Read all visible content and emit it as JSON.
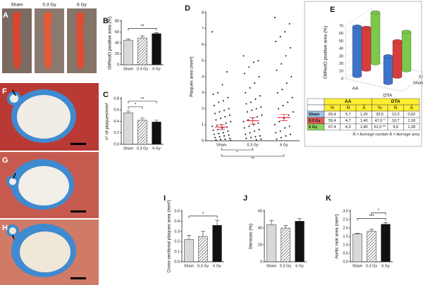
{
  "images": [
    {
      "panel": "A",
      "labels": [
        "Sham",
        "0.3 Gy",
        "6 Gy"
      ]
    },
    {
      "panel": "F"
    },
    {
      "panel": "G"
    },
    {
      "panel": "H"
    }
  ],
  "chart_data": [
    {
      "type": "bar",
      "panel": "B",
      "ylabel": "OilRedO positive area (%)",
      "categories": [
        "Sham",
        "0.3 Gy",
        "6 Gy"
      ],
      "values": [
        45,
        49,
        57
      ],
      "errors": [
        2,
        4,
        2
      ],
      "fills": [
        "#d9d9d9",
        "hatched",
        "#111111"
      ],
      "ylim": [
        0,
        80
      ],
      "yticks": [
        0,
        20,
        40,
        60,
        80
      ],
      "significance": [
        {
          "from": 0,
          "to": 2,
          "label": "**"
        }
      ]
    },
    {
      "type": "bar",
      "panel": "C",
      "ylabel": "n° of plaques/mm²",
      "categories": [
        "Sham",
        "0.3 Gy",
        "6 Gy"
      ],
      "values": [
        0.55,
        0.42,
        0.39
      ],
      "errors": [
        0.03,
        0.04,
        0.03
      ],
      "fills": [
        "#d9d9d9",
        "hatched",
        "#111111"
      ],
      "ylim": [
        0,
        0.8
      ],
      "yticks": [
        {
          "value": 0,
          "label": "0.0"
        },
        0.2,
        0.4,
        0.6,
        0.8
      ],
      "significance": [
        {
          "from": 0,
          "to": 1,
          "label": "*"
        },
        {
          "from": 0,
          "to": 2,
          "label": "**"
        }
      ]
    },
    {
      "type": "dot",
      "panel": "D",
      "ylabel": "Plaques area (mm²)",
      "categories": [
        "Sham",
        "0.3 Gy",
        "6 Gy"
      ],
      "points": [
        [
          6.8,
          4.3,
          3.5,
          3.0,
          2.9,
          2.7,
          2.5,
          2.4,
          2.2,
          2.0,
          1.9,
          1.8,
          1.7,
          1.6,
          1.5,
          1.4,
          1.3,
          1.2,
          1.1,
          1.0,
          0.95,
          0.9,
          0.85,
          0.8,
          0.7,
          0.65,
          0.6,
          0.5,
          0.45,
          0.4,
          0.35,
          0.3,
          0.25,
          0.2,
          0.15,
          0.1,
          0.08,
          0.05,
          0.03
        ],
        [
          5.3,
          5.0,
          4.9,
          4.6,
          4.2,
          4.0,
          3.6,
          3.3,
          3.0,
          2.8,
          2.6,
          2.4,
          2.3,
          2.1,
          2.0,
          1.9,
          1.8,
          1.6,
          1.5,
          1.4,
          1.3,
          1.2,
          1.1,
          1.0,
          0.9,
          0.8,
          0.7,
          0.6,
          0.5,
          0.4,
          0.3,
          0.25,
          0.2,
          0.15,
          0.1,
          0.05
        ],
        [
          7.7,
          7.3,
          6.8,
          6.5,
          6.2,
          5.8,
          5.3,
          4.8,
          4.4,
          4.0,
          3.6,
          3.2,
          3.0,
          2.7,
          2.4,
          2.2,
          2.0,
          1.8,
          1.6,
          1.4,
          1.2,
          1.0,
          0.9,
          0.8,
          0.6,
          0.5,
          0.4,
          0.3,
          0.2,
          0.1
        ]
      ],
      "means": [
        0.85,
        1.25,
        1.45
      ],
      "errors": [
        0.15,
        0.2,
        0.2
      ],
      "mean_color": "#e0303a",
      "ylim": [
        0,
        8
      ],
      "yticks": [
        0,
        1,
        2,
        3,
        4,
        5,
        6,
        7,
        8
      ],
      "significance": [
        {
          "from": 0,
          "to": 1,
          "label": "*"
        },
        {
          "from": 0,
          "to": 2,
          "label": "**"
        }
      ]
    },
    {
      "type": "bar3d",
      "panel": "E",
      "ylabel": "OilRedO positive area (%)",
      "categories": [
        "AA",
        "DTA"
      ],
      "series": [
        {
          "name": "Sham",
          "color": "#3f73c9",
          "values": [
            65.4,
            35.5
          ]
        },
        {
          "name": "0.3 Gy",
          "color": "#d93c3c",
          "values": [
            55.4,
            47.0
          ]
        },
        {
          "name": "6 Gy",
          "color": "#7cc84a",
          "values": [
            67.4,
            51.0
          ]
        }
      ],
      "ylim": [
        0,
        70
      ],
      "yticks": [
        0,
        10,
        20,
        30,
        40,
        50,
        60,
        70
      ]
    },
    {
      "type": "bar",
      "panel": "I",
      "ylabel": "Cross-sectional plaques area (mm²)",
      "categories": [
        "Sham",
        "0.3 Gy",
        "6 Gy"
      ],
      "values": [
        0.22,
        0.25,
        0.36
      ],
      "errors": [
        0.04,
        0.05,
        0.05
      ],
      "fills": [
        "#d9d9d9",
        "hatched",
        "#111111"
      ],
      "ylim": [
        0,
        0.5
      ],
      "yticks": [
        {
          "value": 0,
          "label": "0.0"
        },
        0.1,
        0.2,
        0.3,
        0.4,
        0.5
      ],
      "significance": [
        {
          "from": 0,
          "to": 2,
          "label": "*"
        }
      ]
    },
    {
      "type": "bar",
      "panel": "J",
      "ylabel": "Stenosis (%)",
      "categories": [
        "Sham",
        "0.3 Gy",
        "6 Gy"
      ],
      "values": [
        44,
        40,
        48
      ],
      "errors": [
        5,
        3,
        3
      ],
      "fills": [
        "#d9d9d9",
        "hatched",
        "#111111"
      ],
      "ylim": [
        0,
        60
      ],
      "yticks": [
        0,
        20,
        40,
        60
      ],
      "significance": []
    },
    {
      "type": "bar",
      "panel": "K",
      "ylabel": "Aortic root area (mm²)",
      "categories": [
        "Sham",
        "0.3 Gy",
        "6 Gy"
      ],
      "values": [
        1.65,
        1.8,
        2.22
      ],
      "errors": [
        0.04,
        0.12,
        0.1
      ],
      "fills": [
        "#d9d9d9",
        "hatched",
        "#111111"
      ],
      "ylim": [
        0,
        3
      ],
      "yticks": [
        {
          "value": 0,
          "label": "0.0"
        },
        0.5,
        {
          "value": 1,
          "label": "1.0"
        },
        1.5,
        {
          "value": 2,
          "label": "2.0"
        },
        2.5,
        {
          "value": 3,
          "label": "3.0"
        }
      ],
      "significance": [
        {
          "from": 0,
          "to": 2,
          "label": "***"
        },
        {
          "from": 1,
          "to": 2,
          "label": "*"
        }
      ]
    }
  ],
  "table": {
    "groups": [
      "AA",
      "DTA"
    ],
    "subheaders": [
      "%",
      "N̄",
      "Ā",
      "%",
      "N̄",
      "Ā"
    ],
    "rows": [
      [
        "Sham",
        "65,4",
        "5,7",
        "1,20",
        "35,5",
        "12,3",
        "0,62"
      ],
      [
        "0.3 Gy",
        "55,4",
        "4,7",
        "1,40",
        "47,0 *",
        "10,7",
        "1,18"
      ],
      [
        "6 Gy",
        "67,4",
        "4,3",
        "1,80",
        "51,0 **",
        "9,6",
        "1,28"
      ]
    ],
    "row_colors": [
      "#9dc3e6",
      "#e05a5a",
      "#8fd35f"
    ],
    "header_color": "#ffee33",
    "footnote": "N̄ = Average number   Ā = Average area"
  }
}
